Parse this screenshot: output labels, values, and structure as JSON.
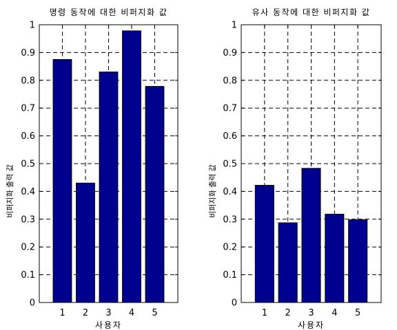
{
  "chart_data": [
    {
      "type": "bar",
      "title": "명령 동작에 대한 비퍼지화 값",
      "xlabel": "사용자",
      "ylabel": "비퍼지화 출력 값",
      "categories": [
        "1",
        "2",
        "3",
        "4",
        "5"
      ],
      "values": [
        0.875,
        0.43,
        0.83,
        0.978,
        0.778
      ],
      "ylim": [
        0,
        1
      ],
      "yticks": [
        "0",
        "0.1",
        "0.2",
        "0.3",
        "0.4",
        "0.5",
        "0.6",
        "0.7",
        "0.8",
        "0.9",
        "1"
      ],
      "grid": true,
      "bar_color": "#00008f"
    },
    {
      "type": "bar",
      "title": "유사 동작에 대한 비퍼지화 값",
      "xlabel": "사용자",
      "ylabel": "비퍼지화 출력 값",
      "categories": [
        "1",
        "2",
        "3",
        "4",
        "5"
      ],
      "values": [
        0.422,
        0.287,
        0.483,
        0.318,
        0.298
      ],
      "ylim": [
        0,
        1
      ],
      "yticks": [
        "0",
        "0.1",
        "0.2",
        "0.3",
        "0.4",
        "0.5",
        "0.6",
        "0.7",
        "0.8",
        "0.9",
        "1"
      ],
      "grid": true,
      "bar_color": "#00008f"
    }
  ]
}
